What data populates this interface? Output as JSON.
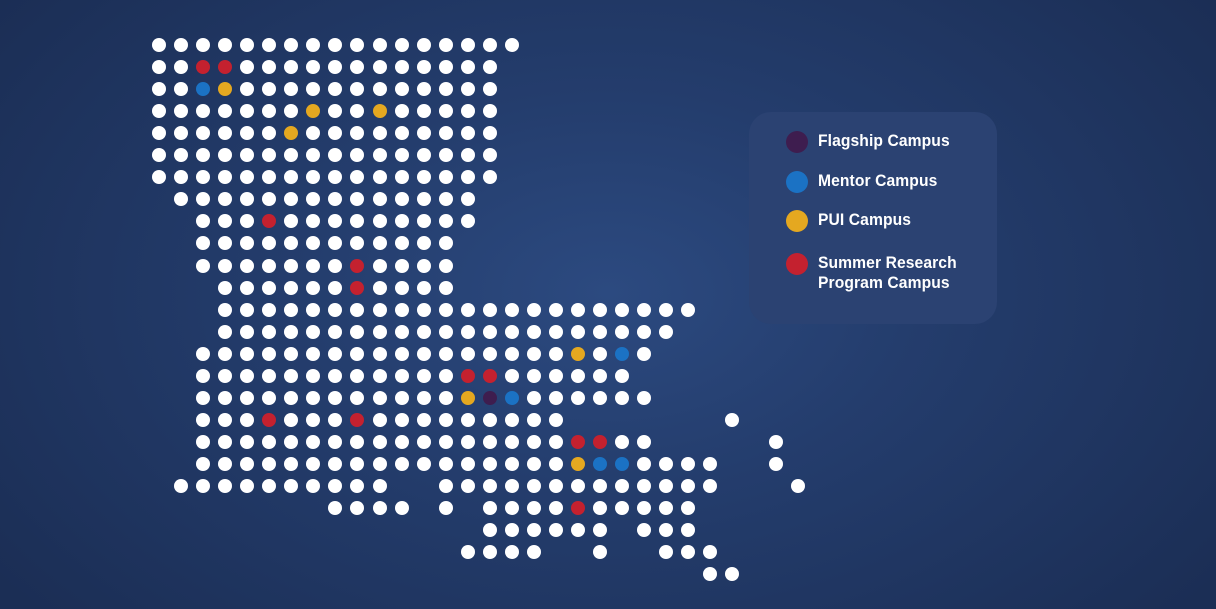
{
  "colors": {
    "white": "#ffffff",
    "flagship": "#3e1d4f",
    "mentor": "#1b72c4",
    "pui": "#e5a820",
    "summer": "#c4212f",
    "background": "#1f3562",
    "legend_bg": "#2b4272"
  },
  "legend": {
    "items": [
      {
        "key": "F",
        "label": "Flagship Campus",
        "color": "#3e1d4f"
      },
      {
        "key": "M",
        "label": "Mentor Campus",
        "color": "#1b72c4"
      },
      {
        "key": "P",
        "label": "PUI Campus",
        "color": "#e5a820"
      },
      {
        "key": "R",
        "label": "Summer Research\nProgram Campus",
        "color": "#c4212f"
      }
    ]
  },
  "map": {
    "state": "Louisiana",
    "rows": [
      "WWWWWWWWWWWWWWWWW",
      "WWRRWWWWWWWWWWWW",
      "WWMPWWWWWWWWWWWW",
      "WWWWWWWPWWPWWWWW",
      "WWWWWWPWWWWWWWWW",
      "WWWWWWWWWWWWWWWW",
      "WWWWWWWWWWWWWWWW",
      ".WWWWWWWWWWWWWW",
      "..WWWRWWWWWWWWW",
      "..WWWWWWWWWWWW",
      "..WWWWWWWRWWWW",
      "...WWWWWWRWWWW",
      "...WWWWWWWWWWWWWWWWWWWWWW",
      "...WWWWWWWWWWWWWWWWWWWWW",
      "..WWWWWWWWWWWWWWWWWPWMW",
      "..WWWWWWWWWWWWRRWWWWWW",
      "..WWWWWWWWWWWWPFMWWWWWW",
      "..WWWRWWWRWWWWWWWWW.......W",
      "..WWWWWWWWWWWWWWWWWRRWW.....W",
      "..WWWWWWWWWWWWWWWWWPMMWWWW..W",
      ".WWWWWWWWWW..WWWWWWWWWWWWW...W",
      "........WWWW.W.WWWWRWWWWW",
      "...............WWWWWW.WWW",
      "..............WWWW..W..WWW",
      "...................................................WW"
    ]
  }
}
